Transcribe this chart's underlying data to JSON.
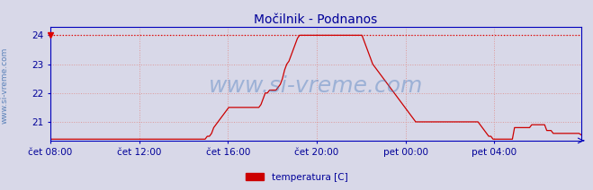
{
  "title": "Močilnik - Podnanos",
  "ylabel_rotated": "www.si-vreme.com",
  "legend_label": "temperatura [C]",
  "legend_color": "#cc0000",
  "xlim": [
    0,
    287
  ],
  "ylim_bottom": 20.35,
  "ylim_top": 24.3,
  "yticks": [
    21,
    22,
    23,
    24
  ],
  "xtick_positions": [
    0,
    48,
    96,
    144,
    192,
    240
  ],
  "xtick_labels": [
    "čet 08:00",
    "čet 12:00",
    "čet 16:00",
    "čet 20:00",
    "pet 00:00",
    "pet 04:00"
  ],
  "hline_y": 24.0,
  "hline_color": "#dd0000",
  "grid_color": "#dd9999",
  "bg_color": "#d8d8e8",
  "plot_bg_color": "#d8d8e8",
  "line_color": "#cc0000",
  "axis_color": "#0000bb",
  "title_color": "#000099",
  "title_fontsize": 10,
  "tick_label_color": "#000099",
  "tick_fontsize": 7.5,
  "watermark_text": "www.si-vreme.com",
  "watermark_color": "#4477bb",
  "watermark_alpha": 0.4,
  "watermark_fontsize": 18,
  "temperature_data": [
    20.4,
    20.4,
    20.4,
    20.4,
    20.4,
    20.4,
    20.4,
    20.4,
    20.4,
    20.4,
    20.4,
    20.4,
    20.4,
    20.4,
    20.4,
    20.4,
    20.4,
    20.4,
    20.4,
    20.4,
    20.4,
    20.4,
    20.4,
    20.4,
    20.4,
    20.4,
    20.4,
    20.4,
    20.4,
    20.4,
    20.4,
    20.4,
    20.4,
    20.4,
    20.4,
    20.4,
    20.4,
    20.4,
    20.4,
    20.4,
    20.4,
    20.4,
    20.4,
    20.4,
    20.4,
    20.4,
    20.4,
    20.4,
    20.4,
    20.4,
    20.4,
    20.4,
    20.4,
    20.4,
    20.4,
    20.4,
    20.4,
    20.4,
    20.4,
    20.4,
    20.4,
    20.4,
    20.4,
    20.4,
    20.4,
    20.4,
    20.4,
    20.4,
    20.4,
    20.4,
    20.4,
    20.4,
    20.4,
    20.5,
    20.5,
    20.6,
    20.8,
    20.9,
    21.0,
    21.1,
    21.2,
    21.3,
    21.4,
    21.5,
    21.5,
    21.5,
    21.5,
    21.5,
    21.5,
    21.5,
    21.5,
    21.5,
    21.5,
    21.5,
    21.5,
    21.5,
    21.5,
    21.5,
    21.6,
    21.8,
    22.0,
    22.0,
    22.1,
    22.1,
    22.1,
    22.1,
    22.2,
    22.3,
    22.5,
    22.8,
    23.0,
    23.1,
    23.3,
    23.5,
    23.7,
    23.9,
    24.0,
    24.0,
    24.0,
    24.0,
    24.0,
    24.0,
    24.0,
    24.0,
    24.0,
    24.0,
    24.0,
    24.0,
    24.0,
    24.0,
    24.0,
    24.0,
    24.0,
    24.0,
    24.0,
    24.0,
    24.0,
    24.0,
    24.0,
    24.0,
    24.0,
    24.0,
    24.0,
    24.0,
    24.0,
    24.0,
    23.8,
    23.6,
    23.4,
    23.2,
    23.0,
    22.9,
    22.8,
    22.7,
    22.6,
    22.5,
    22.4,
    22.3,
    22.2,
    22.1,
    22.0,
    21.9,
    21.8,
    21.7,
    21.6,
    21.5,
    21.4,
    21.3,
    21.2,
    21.1,
    21.0,
    21.0,
    21.0,
    21.0,
    21.0,
    21.0,
    21.0,
    21.0,
    21.0,
    21.0,
    21.0,
    21.0,
    21.0,
    21.0,
    21.0,
    21.0,
    21.0,
    21.0,
    21.0,
    21.0,
    21.0,
    21.0,
    21.0,
    21.0,
    21.0,
    21.0,
    21.0,
    21.0,
    21.0,
    21.0,
    20.9,
    20.8,
    20.7,
    20.6,
    20.5,
    20.5,
    20.4,
    20.4,
    20.4,
    20.4,
    20.4,
    20.4,
    20.4,
    20.4,
    20.4,
    20.4,
    20.8,
    20.8,
    20.8,
    20.8,
    20.8,
    20.8,
    20.8,
    20.8,
    20.9,
    20.9,
    20.9,
    20.9,
    20.9,
    20.9,
    20.9,
    20.7,
    20.7,
    20.7,
    20.6,
    20.6,
    20.6,
    20.6,
    20.6,
    20.6,
    20.6,
    20.6,
    20.6,
    20.6,
    20.6,
    20.6,
    20.6,
    20.55
  ]
}
